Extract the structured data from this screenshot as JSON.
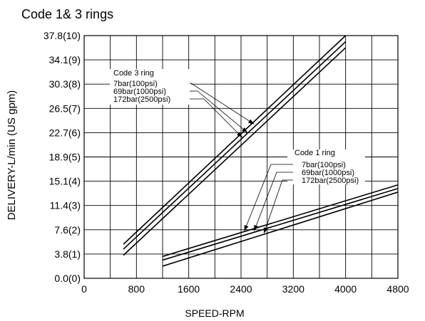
{
  "chart_data": {
    "type": "line",
    "title": "Code 1& 3 rings",
    "xlabel": "SPEED-RPM",
    "ylabel": "DELIVERY-L/min (US gpm)",
    "xlim": [
      0,
      4800
    ],
    "ylim": [
      0,
      10
    ],
    "grid": true,
    "x_ticks": [
      {
        "value": 0,
        "label": "0"
      },
      {
        "value": 800,
        "label": "800"
      },
      {
        "value": 1600,
        "label": "1600"
      },
      {
        "value": 2400,
        "label": "2400"
      },
      {
        "value": 3200,
        "label": "3200"
      },
      {
        "value": 4000,
        "label": "4000"
      },
      {
        "value": 4800,
        "label": "4800"
      }
    ],
    "y_ticks": [
      {
        "value": 0,
        "label": "0.0(0)"
      },
      {
        "value": 1,
        "label": "3.8(1)"
      },
      {
        "value": 2,
        "label": "7.6(2)"
      },
      {
        "value": 3,
        "label": "11.4(3)"
      },
      {
        "value": 4,
        "label": "15.1(4)"
      },
      {
        "value": 5,
        "label": "18.9(5)"
      },
      {
        "value": 6,
        "label": "22.7(6)"
      },
      {
        "value": 7,
        "label": "26.5(7)"
      },
      {
        "value": 8,
        "label": "30.3(8)"
      },
      {
        "value": 9,
        "label": "34.1(9)"
      },
      {
        "value": 10,
        "label": "37.8(10)"
      }
    ],
    "groups": [
      {
        "label": "Code 3 ring",
        "series": [
          {
            "name": "7bar(100psi)",
            "points": [
              [
                600,
                1.4
              ],
              [
                4000,
                10.0
              ]
            ]
          },
          {
            "name": "69bar(1000psi)",
            "points": [
              [
                600,
                1.2
              ],
              [
                4000,
                9.75
              ]
            ]
          },
          {
            "name": "172bar(2500psi)",
            "points": [
              [
                600,
                0.95
              ],
              [
                4000,
                9.5
              ]
            ]
          }
        ]
      },
      {
        "label": "Code 1 ring",
        "series": [
          {
            "name": "7bar(100psi)",
            "points": [
              [
                1200,
                0.9
              ],
              [
                4800,
                3.85
              ]
            ]
          },
          {
            "name": "69bar(1000psi)",
            "points": [
              [
                1200,
                0.75
              ],
              [
                4800,
                3.7
              ]
            ]
          },
          {
            "name": "172bar(2500psi)",
            "points": [
              [
                1200,
                0.5
              ],
              [
                4800,
                3.55
              ]
            ]
          }
        ]
      }
    ]
  }
}
